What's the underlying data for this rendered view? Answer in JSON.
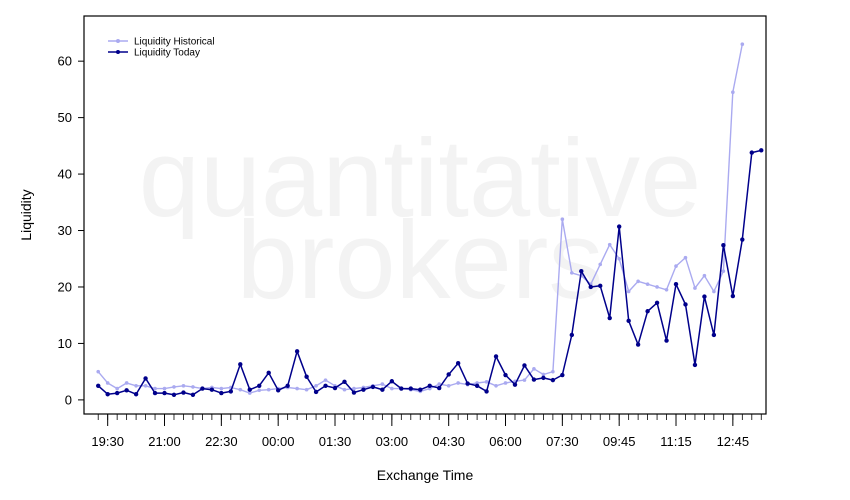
{
  "chart_data": {
    "type": "line",
    "watermark": [
      "quantitative",
      "brokers"
    ],
    "xlabel": "Exchange Time",
    "ylabel": "Liquidity",
    "ylim": [
      -2.5,
      68
    ],
    "yticks": [
      0,
      10,
      20,
      30,
      40,
      50,
      60
    ],
    "x_step_minutes": 15,
    "x_range_index": [
      -1.5,
      70.5
    ],
    "xticks": [
      {
        "label": "19:30",
        "index": 1
      },
      {
        "label": "21:00",
        "index": 7
      },
      {
        "label": "22:30",
        "index": 13
      },
      {
        "label": "00:00",
        "index": 19
      },
      {
        "label": "01:30",
        "index": 25
      },
      {
        "label": "03:00",
        "index": 31
      },
      {
        "label": "04:30",
        "index": 37
      },
      {
        "label": "06:00",
        "index": 43
      },
      {
        "label": "07:30",
        "index": 49
      },
      {
        "label": "09:45",
        "index": 55
      },
      {
        "label": "11:15",
        "index": 61
      },
      {
        "label": "12:45",
        "index": 67
      }
    ],
    "legend_position": "top-left",
    "series": [
      {
        "name": "Liquidity Historical",
        "color": "#aaaaf0",
        "values": [
          5.0,
          3.0,
          2.0,
          3.0,
          2.5,
          2.5,
          2.0,
          2.0,
          2.3,
          2.5,
          2.3,
          2.0,
          2.2,
          2.0,
          2.2,
          1.8,
          1.2,
          1.7,
          1.8,
          2.0,
          2.2,
          2.0,
          1.8,
          2.5,
          3.5,
          2.5,
          1.8,
          2.0,
          2.2,
          2.5,
          2.8,
          2.0,
          2.0,
          1.8,
          1.5,
          2.0,
          2.8,
          2.5,
          3.0,
          2.7,
          3.0,
          3.2,
          2.5,
          3.0,
          3.3,
          3.5,
          5.5,
          4.5,
          5.0,
          32.0,
          22.5,
          22.0,
          20.5,
          24.0,
          27.5,
          25.0,
          19.2,
          21.0,
          20.5,
          20.0,
          19.5,
          23.7,
          25.2,
          19.8,
          22.0,
          19.2,
          22.8,
          54.5,
          63.0
        ],
        "start_index": 0
      },
      {
        "name": "Liquidity Today",
        "color": "#00008b",
        "values": [
          2.5,
          1.0,
          1.2,
          1.7,
          1.0,
          3.8,
          1.2,
          1.2,
          0.9,
          1.3,
          0.9,
          2.0,
          1.8,
          1.2,
          1.5,
          6.3,
          1.8,
          2.5,
          4.8,
          1.7,
          2.5,
          8.6,
          4.1,
          1.4,
          2.5,
          2.1,
          3.2,
          1.3,
          1.8,
          2.3,
          1.8,
          3.3,
          2.0,
          2.0,
          1.8,
          2.5,
          2.1,
          4.5,
          6.5,
          2.9,
          2.5,
          1.5,
          7.7,
          4.4,
          2.7,
          6.1,
          3.6,
          3.9,
          3.5,
          4.4,
          11.5,
          22.8,
          20.0,
          20.2,
          14.5,
          30.7,
          14.0,
          9.8,
          15.7,
          17.2,
          10.5,
          20.5,
          16.9,
          6.2,
          18.3,
          11.5,
          27.4,
          18.4,
          28.4,
          43.8,
          44.2
        ],
        "start_index": 0
      }
    ]
  }
}
